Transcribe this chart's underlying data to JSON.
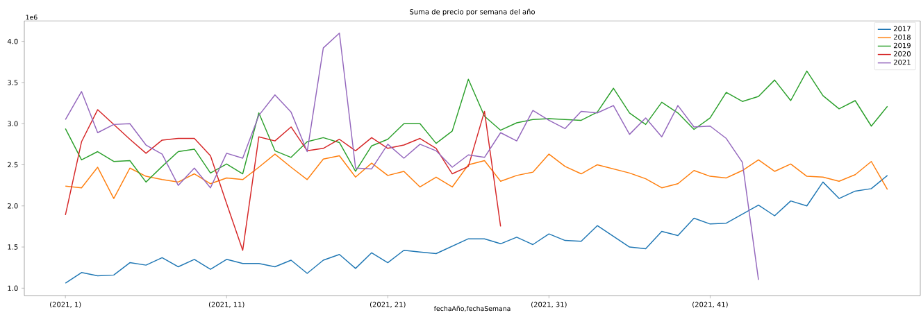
{
  "chart_data": {
    "type": "line",
    "title": "Suma de precio por semana del año",
    "xlabel": "fechaAño,fechaSemana",
    "annotations": [
      "1e6"
    ],
    "categories": [
      "(2021, 1)",
      null,
      null,
      null,
      null,
      null,
      null,
      null,
      null,
      null,
      "(2021, 11)",
      null,
      null,
      null,
      null,
      null,
      null,
      null,
      null,
      null,
      "(2021, 21)",
      null,
      null,
      null,
      null,
      null,
      null,
      null,
      null,
      null,
      "(2021, 31)",
      null,
      null,
      null,
      null,
      null,
      null,
      null,
      null,
      null,
      "(2021, 41)",
      null,
      null,
      null,
      null,
      null,
      null,
      null,
      null,
      null,
      null,
      null
    ],
    "ylim": [
      0.91,
      4.25
    ],
    "yticks": [
      {
        "value": 1,
        "label": "1.0"
      },
      {
        "value": 1.5,
        "label": "1.5"
      },
      {
        "value": 2,
        "label": "2.0"
      },
      {
        "value": 2.5,
        "label": "2.5"
      },
      {
        "value": 3,
        "label": "3.0"
      },
      {
        "value": 3.5,
        "label": "3.5"
      },
      {
        "value": 4,
        "label": "4.0"
      }
    ],
    "legend": "top right",
    "grid": false,
    "series": [
      {
        "name": "2017",
        "color": "#1f77b4",
        "values": [
          1.06,
          1.19,
          1.15,
          1.16,
          1.31,
          1.28,
          1.37,
          1.26,
          1.35,
          1.23,
          1.35,
          1.3,
          1.3,
          1.26,
          1.34,
          1.18,
          1.34,
          1.41,
          1.24,
          1.43,
          1.31,
          1.46,
          1.44,
          1.42,
          1.51,
          1.6,
          1.6,
          1.54,
          1.62,
          1.53,
          1.66,
          1.58,
          1.57,
          1.76,
          1.63,
          1.5,
          1.48,
          1.69,
          1.64,
          1.85,
          1.78,
          1.79,
          1.9,
          2.01,
          1.88,
          2.06,
          2.0,
          2.29,
          2.09,
          2.18,
          2.21,
          2.37
        ]
      },
      {
        "name": "2018",
        "color": "#ff7f0e",
        "values": [
          2.24,
          2.22,
          2.47,
          2.09,
          2.46,
          2.36,
          2.32,
          2.29,
          2.39,
          2.27,
          2.34,
          2.32,
          2.47,
          2.63,
          2.47,
          2.32,
          2.57,
          2.61,
          2.35,
          2.52,
          2.37,
          2.42,
          2.23,
          2.35,
          2.23,
          2.5,
          2.55,
          2.3,
          2.37,
          2.41,
          2.63,
          2.48,
          2.39,
          2.5,
          2.45,
          2.4,
          2.33,
          2.22,
          2.27,
          2.43,
          2.36,
          2.34,
          2.43,
          2.56,
          2.42,
          2.51,
          2.36,
          2.35,
          2.3,
          2.38,
          2.54,
          2.2
        ]
      },
      {
        "name": "2019",
        "color": "#2ca02c",
        "values": [
          2.94,
          2.56,
          2.66,
          2.54,
          2.55,
          2.29,
          2.48,
          2.66,
          2.69,
          2.4,
          2.51,
          2.39,
          3.13,
          2.67,
          2.59,
          2.78,
          2.83,
          2.77,
          2.42,
          2.73,
          2.81,
          3.0,
          3.0,
          2.76,
          2.91,
          3.54,
          3.09,
          2.92,
          3.01,
          3.05,
          3.06,
          3.05,
          3.04,
          3.14,
          3.43,
          3.13,
          2.99,
          3.26,
          3.13,
          2.93,
          3.07,
          3.38,
          3.27,
          3.33,
          3.53,
          3.28,
          3.64,
          3.34,
          3.18,
          3.28,
          2.97,
          3.21
        ]
      },
      {
        "name": "2020",
        "color": "#d62728",
        "values": [
          1.89,
          2.78,
          3.17,
          2.99,
          2.81,
          2.64,
          2.8,
          2.82,
          2.82,
          2.61,
          2.03,
          1.46,
          2.84,
          2.79,
          2.96,
          2.67,
          2.7,
          2.81,
          2.67,
          2.83,
          2.7,
          2.74,
          2.82,
          2.7,
          2.39,
          2.48,
          3.15,
          1.75,
          null,
          null,
          null,
          null,
          null,
          null,
          null,
          null,
          null,
          null,
          null,
          null,
          null,
          null,
          null,
          null,
          null,
          null,
          null,
          null,
          null,
          null,
          null,
          null
        ]
      },
      {
        "name": "2021",
        "color": "#9467bd",
        "values": [
          3.05,
          3.39,
          2.89,
          2.99,
          3.0,
          2.74,
          2.63,
          2.25,
          2.46,
          2.22,
          2.64,
          2.58,
          3.1,
          3.35,
          3.14,
          2.66,
          3.92,
          4.1,
          2.46,
          2.45,
          2.75,
          2.58,
          2.75,
          2.67,
          2.47,
          2.62,
          2.59,
          2.89,
          2.79,
          3.16,
          3.04,
          2.94,
          3.15,
          3.13,
          3.22,
          2.87,
          3.07,
          2.84,
          3.22,
          2.96,
          2.97,
          2.82,
          2.53,
          1.1,
          null,
          null,
          null,
          null,
          null,
          null,
          null,
          null
        ]
      }
    ]
  }
}
